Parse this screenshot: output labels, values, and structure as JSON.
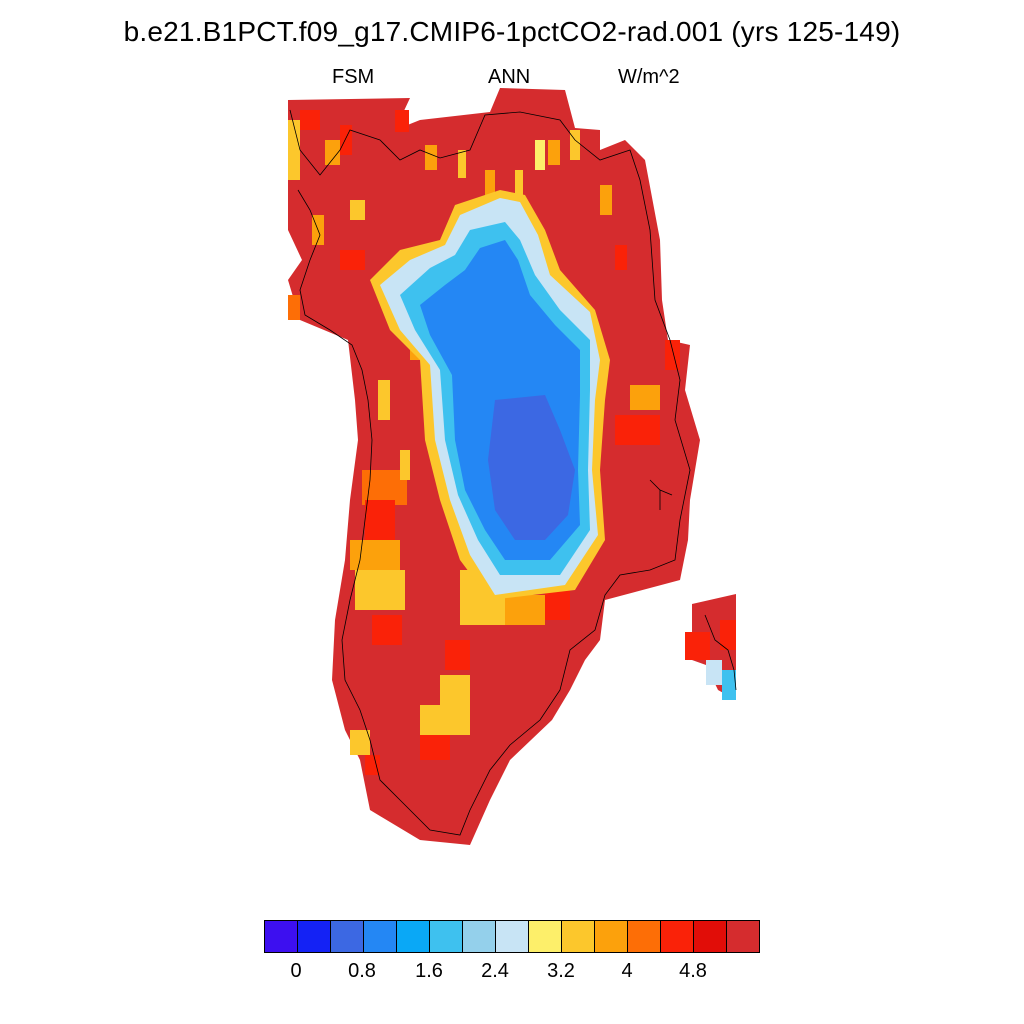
{
  "title": "b.e21.B1PCT.f09_g17.CMIP6-1pctCO2-rad.001 (yrs 125-149)",
  "subtitle": {
    "left": "FSM",
    "center": "ANN",
    "right": "W/m^2"
  },
  "legend": {
    "colors": [
      "#3d0ff0",
      "#1422f5",
      "#3c68e3",
      "#2487f4",
      "#0aa8f6",
      "#3ec1ef",
      "#94d0eb",
      "#c8e4f5",
      "#fdef6a",
      "#fcc72c",
      "#fca10c",
      "#fd6e06",
      "#fa2208",
      "#e10d08",
      "#d52c2e"
    ],
    "tick_labels": [
      "0",
      "0.8",
      "1.6",
      "2.4",
      "3.2",
      "4",
      "4.8"
    ]
  },
  "map": {
    "region": "Greenland",
    "field": "FSM",
    "units": "W/m^2",
    "fill_color": "#d52c2e"
  }
}
